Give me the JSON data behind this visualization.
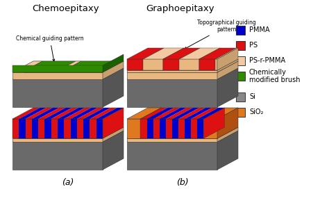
{
  "title_left": "Chemoepitaxy",
  "title_right": "Graphoepitaxy",
  "label_a": "(a)",
  "label_b": "(b)",
  "annotation_left": "Chemical guiding pattern",
  "annotation_right": "Topographical guiding\npattern",
  "legend_items": [
    {
      "label": "PMMA",
      "color": "#0000CC"
    },
    {
      "label": "PS",
      "color": "#DD1111"
    },
    {
      "label": "PS-r-PMMA",
      "color": "#F2C9A0"
    },
    {
      "label": "Chemically\nmodified brush",
      "color": "#2E8B00"
    },
    {
      "label": "Si",
      "color": "#888888"
    },
    {
      "label": "SiO₂",
      "color": "#E07820"
    }
  ],
  "colors": {
    "pmma": "#0000CC",
    "ps": "#DD1111",
    "ps_r_pmma": "#F2C9A0",
    "ps_r_pmma_side": "#C8A070",
    "ps_r_pmma_front": "#E8B880",
    "chem_brush": "#2E8B00",
    "chem_brush_side": "#1A6000",
    "si_top": "#888888",
    "si_side": "#555555",
    "si_front": "#6A6A6A",
    "sio2": "#E07820",
    "sio2_side": "#B05010",
    "ps_side": "#991100",
    "pmma_side": "#000088",
    "background": "#FFFFFF"
  },
  "fig_width": 4.74,
  "fig_height": 3.02,
  "dpi": 100
}
